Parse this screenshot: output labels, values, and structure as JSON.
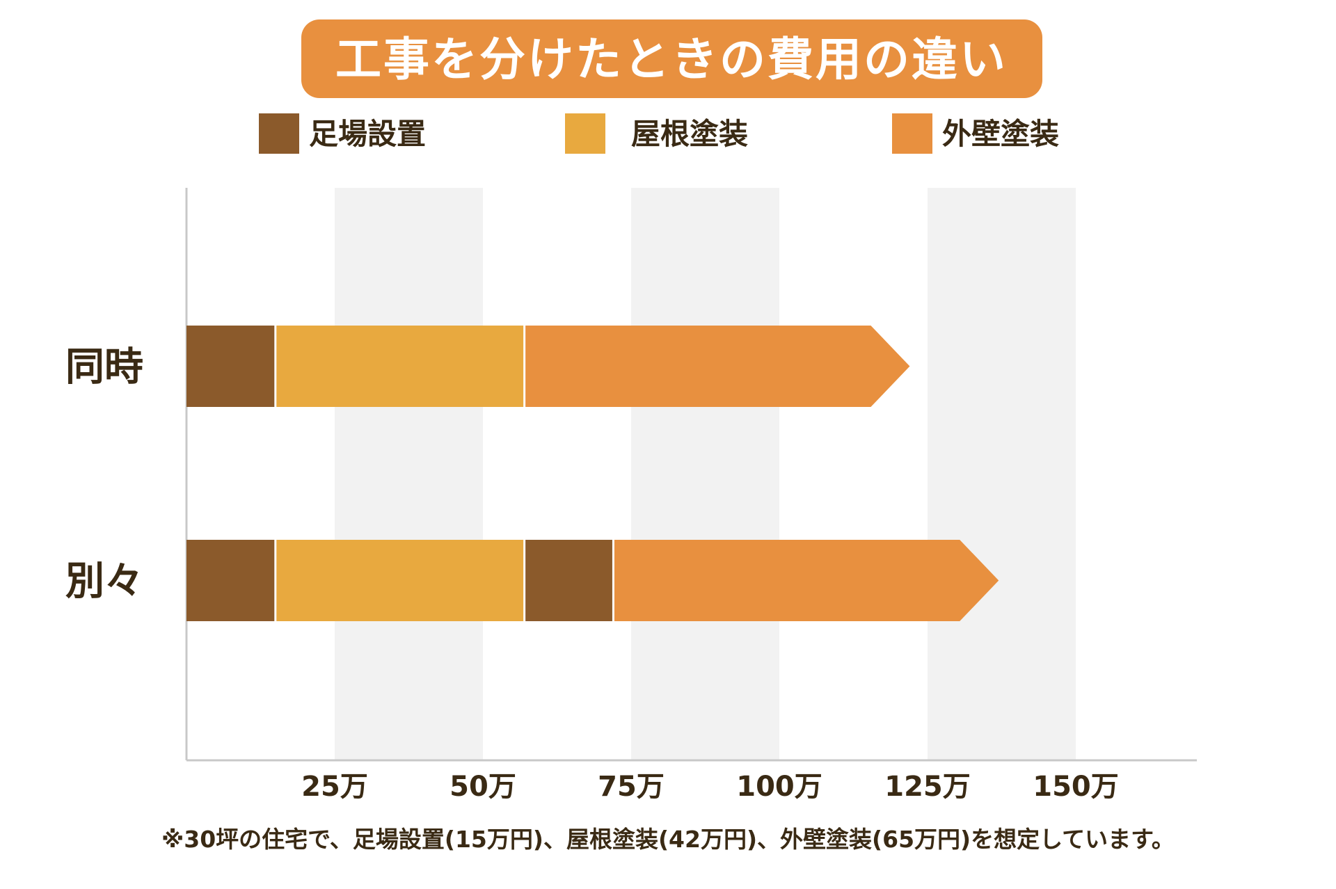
{
  "colors": {
    "scaffolding": "#8B5A2B",
    "roof": "#E8A93F",
    "wall": "#E8903F",
    "title_bg": "#E8903F",
    "title_text": "#ffffff",
    "text": "#3a2a14",
    "band": "#f2f2f2",
    "axis": "#c8c8c8"
  },
  "chart_data": {
    "type": "bar",
    "orientation": "horizontal",
    "stacked": true,
    "title": "工事を分けたときの費用の違い",
    "legend": {
      "placement": "top",
      "entries": [
        {
          "label": "足場設置",
          "color": "#8B5A2B"
        },
        {
          "label": "屋根塗装",
          "color": "#E8A93F"
        },
        {
          "label": "外壁塗装",
          "color": "#E8903F"
        }
      ]
    },
    "categories": [
      "同時",
      "別々"
    ],
    "bars": [
      {
        "category": "同時",
        "segments": [
          {
            "series": "足場設置",
            "value": 15,
            "color": "#8B5A2B"
          },
          {
            "series": "屋根塗装",
            "value": 42,
            "color": "#E8A93F"
          },
          {
            "series": "外壁塗装",
            "value": 65,
            "color": "#E8903F"
          }
        ]
      },
      {
        "category": "別々",
        "segments": [
          {
            "series": "足場設置",
            "value": 15,
            "color": "#8B5A2B"
          },
          {
            "series": "屋根塗装",
            "value": 42,
            "color": "#E8A93F"
          },
          {
            "series": "足場設置",
            "value": 15,
            "color": "#8B5A2B"
          },
          {
            "series": "外壁塗装",
            "value": 65,
            "color": "#E8903F"
          }
        ]
      }
    ],
    "xlim": [
      0,
      170
    ],
    "xticks": [
      {
        "value": 25,
        "label": "25万"
      },
      {
        "value": 50,
        "label": "50万"
      },
      {
        "value": 75,
        "label": "75万"
      },
      {
        "value": 100,
        "label": "100万"
      },
      {
        "value": 125,
        "label": "125万"
      },
      {
        "value": 150,
        "label": "150万"
      }
    ],
    "grid": "alternating vertical bands",
    "note": "※30坪の住宅で、足場設置(15万円)、屋根塗装(42万円)、外壁塗装(65万円)を想定しています。"
  }
}
